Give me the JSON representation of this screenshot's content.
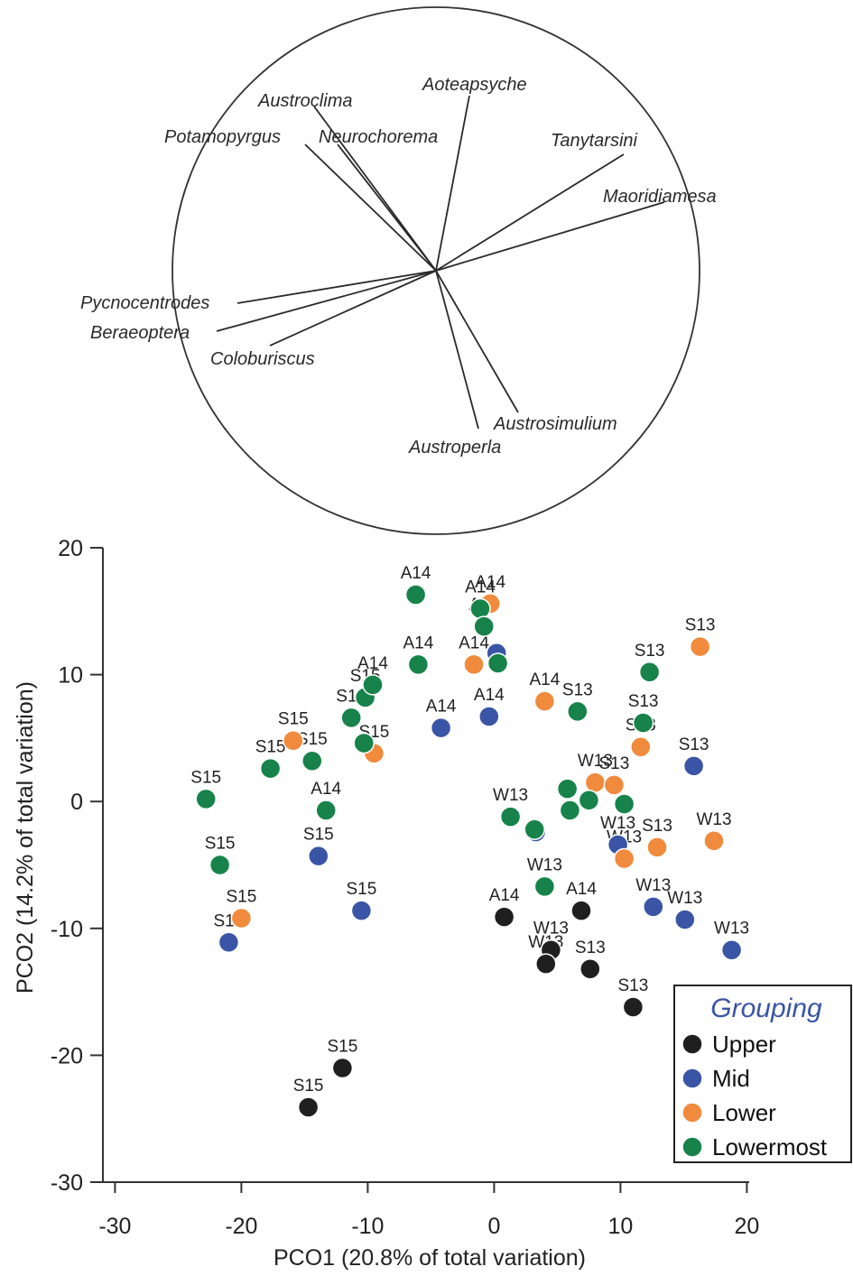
{
  "chart_data": {
    "type": "scatter",
    "xlabel": "PCO1 (20.8% of total variation)",
    "ylabel": "PCO2 (14.2% of total variation)",
    "xlim": [
      -30,
      20
    ],
    "ylim": [
      -30,
      20
    ],
    "xticks": [
      -30,
      -20,
      -10,
      0,
      10,
      20
    ],
    "yticks": [
      20,
      10,
      0,
      -10,
      -20,
      -30
    ],
    "grid": false,
    "legend": {
      "title": "Grouping",
      "title_color": "#3a55a5",
      "position": "bottom-right",
      "entries": [
        {
          "name": "Upper",
          "color": "#1f1f1f"
        },
        {
          "name": "Mid",
          "color": "#3a55a5"
        },
        {
          "name": "Lower",
          "color": "#f08a3c"
        },
        {
          "name": "Lowermost",
          "color": "#17834a"
        }
      ]
    },
    "vectors": [
      {
        "name": "Austroclima"
      },
      {
        "name": "Aoteapsyche"
      },
      {
        "name": "Potamopyrgus"
      },
      {
        "name": "Neurochorema"
      },
      {
        "name": "Tanytarsini"
      },
      {
        "name": "Maoridiamesa"
      },
      {
        "name": "Pycnocentrodes"
      },
      {
        "name": "Beraeoptera"
      },
      {
        "name": "Coloburiscus"
      },
      {
        "name": "Austrosimulium"
      },
      {
        "name": "Austroperla"
      }
    ],
    "series": [
      {
        "name": "Upper",
        "color": "#1f1f1f",
        "points": [
          {
            "x": -12,
            "y": -21,
            "label": "S15"
          },
          {
            "x": -14.7,
            "y": -24.1,
            "label": "S15"
          },
          {
            "x": 0.8,
            "y": -9.1,
            "label": "A14"
          },
          {
            "x": 6.9,
            "y": -8.6,
            "label": "A14"
          },
          {
            "x": 4.5,
            "y": -11.7,
            "label": "W13"
          },
          {
            "x": 4.1,
            "y": -12.8,
            "label": "W13"
          },
          {
            "x": 7.6,
            "y": -13.2,
            "label": "S13"
          },
          {
            "x": 11,
            "y": -16.2,
            "label": "S13"
          }
        ]
      },
      {
        "name": "Mid",
        "color": "#3a55a5",
        "points": [
          {
            "x": -21,
            "y": -11.1,
            "label": "S15"
          },
          {
            "x": -13.9,
            "y": -4.3,
            "label": "S15"
          },
          {
            "x": -10.5,
            "y": -8.6,
            "label": "S15"
          },
          {
            "x": -4.2,
            "y": 5.8,
            "label": "A14"
          },
          {
            "x": -0.4,
            "y": 6.7,
            "label": "A14"
          },
          {
            "x": 0.2,
            "y": 11.7,
            "label": ""
          },
          {
            "x": 3.3,
            "y": -2.4,
            "label": ""
          },
          {
            "x": 9.8,
            "y": -3.4,
            "label": "W13"
          },
          {
            "x": 12.6,
            "y": -8.3,
            "label": "W13"
          },
          {
            "x": 15.1,
            "y": -9.3,
            "label": "W13"
          },
          {
            "x": 18.8,
            "y": -11.7,
            "label": "W13"
          },
          {
            "x": 15.8,
            "y": 2.8,
            "label": "S13"
          }
        ]
      },
      {
        "name": "Lower",
        "color": "#f08a3c",
        "points": [
          {
            "x": -20,
            "y": -9.2,
            "label": "S15"
          },
          {
            "x": -15.9,
            "y": 4.8,
            "label": "S15"
          },
          {
            "x": -9.5,
            "y": 3.8,
            "label": "S15"
          },
          {
            "x": -1.6,
            "y": 10.8,
            "label": "A14"
          },
          {
            "x": -0.3,
            "y": 15.6,
            "label": "A14"
          },
          {
            "x": 4,
            "y": 7.9,
            "label": "A14"
          },
          {
            "x": 8,
            "y": 1.5,
            "label": "W13"
          },
          {
            "x": 9.5,
            "y": 1.3,
            "label": "S13"
          },
          {
            "x": 10.3,
            "y": -4.5,
            "label": "W13"
          },
          {
            "x": 11.6,
            "y": 4.3,
            "label": "S13"
          },
          {
            "x": 12.9,
            "y": -3.6,
            "label": "S13"
          },
          {
            "x": 16.3,
            "y": 12.2,
            "label": "S13"
          },
          {
            "x": 17.4,
            "y": -3.1,
            "label": "W13"
          }
        ]
      },
      {
        "name": "Lowermost",
        "color": "#17834a",
        "points": [
          {
            "x": -22.8,
            "y": 0.2,
            "label": "S15"
          },
          {
            "x": -21.7,
            "y": -5,
            "label": "S15"
          },
          {
            "x": -17.7,
            "y": 2.6,
            "label": "S15"
          },
          {
            "x": -14.4,
            "y": 3.2,
            "label": "S15"
          },
          {
            "x": -13.3,
            "y": -0.7,
            "label": "A14"
          },
          {
            "x": -11.3,
            "y": 6.6,
            "label": "S15"
          },
          {
            "x": -10.2,
            "y": 8.2,
            "label": "S15"
          },
          {
            "x": -9.6,
            "y": 9.2,
            "label": "A14"
          },
          {
            "x": -10.3,
            "y": 4.6,
            "label": ""
          },
          {
            "x": -6.2,
            "y": 16.3,
            "label": "A14"
          },
          {
            "x": -6,
            "y": 10.8,
            "label": "A14"
          },
          {
            "x": -1.1,
            "y": 15.2,
            "label": "A14"
          },
          {
            "x": -0.8,
            "y": 13.8,
            "label": "A14"
          },
          {
            "x": 0.3,
            "y": 10.9,
            "label": ""
          },
          {
            "x": 1.3,
            "y": -1.2,
            "label": "W13"
          },
          {
            "x": 3.2,
            "y": -2.2,
            "label": ""
          },
          {
            "x": 4,
            "y": -6.7,
            "label": "W13"
          },
          {
            "x": 5.8,
            "y": 1,
            "label": ""
          },
          {
            "x": 6,
            "y": -0.7,
            "label": ""
          },
          {
            "x": 6.6,
            "y": 7.1,
            "label": "S13"
          },
          {
            "x": 7.5,
            "y": 0.1,
            "label": ""
          },
          {
            "x": 10.3,
            "y": -0.2,
            "label": ""
          },
          {
            "x": 11.8,
            "y": 6.2,
            "label": "S13"
          },
          {
            "x": 12.3,
            "y": 10.2,
            "label": "S13"
          }
        ]
      }
    ]
  }
}
